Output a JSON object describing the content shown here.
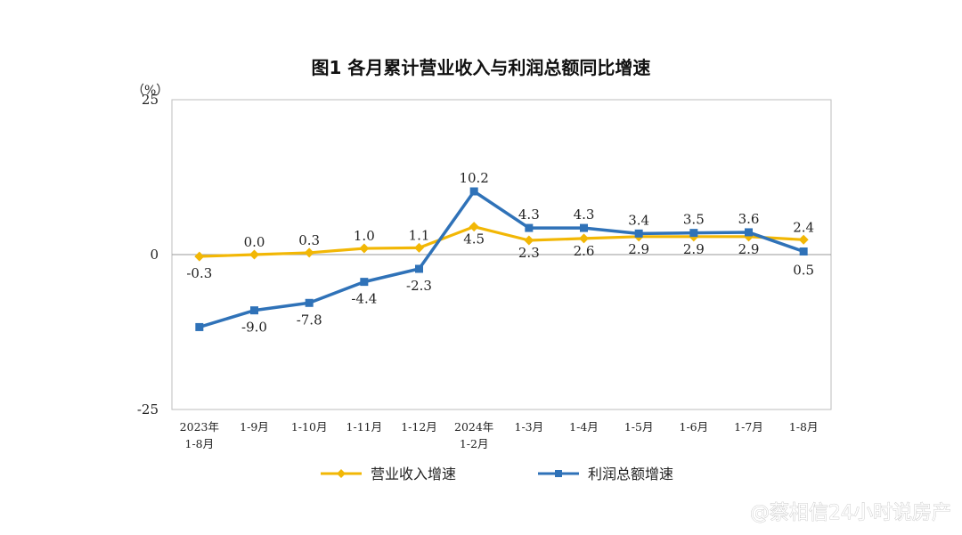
{
  "chart_data": {
    "type": "line",
    "title": "图1  各月累计营业收入与利润总额同比增速",
    "unit": "（%）",
    "ylim": [
      -25,
      25
    ],
    "yticks": [
      "25",
      "0",
      "-25"
    ],
    "categories": [
      [
        "2023年",
        "1-8月"
      ],
      [
        "1-9月"
      ],
      [
        "1-10月"
      ],
      [
        "1-11月"
      ],
      [
        "1-12月"
      ],
      [
        "2024年",
        "1-2月"
      ],
      [
        "1-3月"
      ],
      [
        "1-4月"
      ],
      [
        "1-5月"
      ],
      [
        "1-6月"
      ],
      [
        "1-7月"
      ],
      [
        "1-8月"
      ]
    ],
    "series": [
      {
        "name": "营业收入增速",
        "color": "#f2b705",
        "values": [
          -0.3,
          0.0,
          0.3,
          1.0,
          1.1,
          4.5,
          2.3,
          2.6,
          2.9,
          2.9,
          2.9,
          2.4
        ],
        "labels": [
          "-0.3",
          "0.0",
          "0.3",
          "1.0",
          "1.1",
          "4.5",
          "2.3",
          "2.6",
          "2.9",
          "2.9",
          "2.9",
          "2.4"
        ]
      },
      {
        "name": "利润总额增速",
        "color": "#2f72b8",
        "values": [
          -11.7,
          -9.0,
          -7.8,
          -4.4,
          -2.3,
          10.2,
          4.3,
          4.3,
          3.4,
          3.5,
          3.6,
          0.5
        ],
        "labels": [
          "",
          "-9.0",
          "-7.8",
          "-4.4",
          "-2.3",
          "10.2",
          "4.3",
          "4.3",
          "3.4",
          "3.5",
          "3.6",
          "0.5"
        ]
      }
    ],
    "grid": false,
    "legend": "bottom"
  },
  "watermark": "@蔡相信24小时说房产"
}
